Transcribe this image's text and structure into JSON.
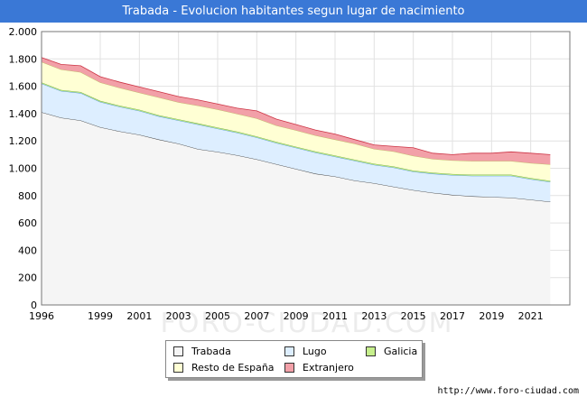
{
  "header": {
    "title": "Trabada - Evolucion habitantes segun lugar de nacimiento"
  },
  "footer": {
    "source": "http://www.foro-ciudad.com"
  },
  "watermark": {
    "text": "FORO-CIUDAD.COM"
  },
  "chart_data": {
    "type": "area",
    "stacked": true,
    "grid": true,
    "legend_position": "bottom",
    "ylim": [
      0,
      2000
    ],
    "yticks": [
      0,
      200,
      400,
      600,
      800,
      1000,
      1200,
      1400,
      1600,
      1800,
      2000
    ],
    "ytick_labels": [
      "0",
      "200",
      "400",
      "600",
      "800",
      "1.000",
      "1.200",
      "1.400",
      "1.600",
      "1.800",
      "2.000"
    ],
    "xlim": [
      1996,
      2023
    ],
    "xticks": [
      1996,
      1999,
      2001,
      2003,
      2005,
      2007,
      2009,
      2011,
      2013,
      2015,
      2017,
      2019,
      2021
    ],
    "x": [
      1996,
      1997,
      1998,
      1999,
      2000,
      2001,
      2002,
      2003,
      2004,
      2005,
      2006,
      2007,
      2008,
      2009,
      2010,
      2011,
      2012,
      2013,
      2014,
      2015,
      2016,
      2017,
      2018,
      2019,
      2020,
      2021,
      2022
    ],
    "series": [
      {
        "name": "Trabada",
        "color": "#f5f5f5",
        "line": "#333333",
        "values": [
          1410,
          1370,
          1350,
          1300,
          1270,
          1245,
          1210,
          1180,
          1140,
          1120,
          1095,
          1065,
          1030,
          995,
          960,
          940,
          910,
          890,
          865,
          840,
          820,
          805,
          795,
          790,
          785,
          770,
          755
        ]
      },
      {
        "name": "Lugo",
        "color": "#ddeeff",
        "line": "#4a90d9",
        "values": [
          210,
          195,
          200,
          185,
          180,
          175,
          170,
          170,
          180,
          170,
          165,
          160,
          155,
          155,
          155,
          145,
          145,
          135,
          140,
          135,
          140,
          145,
          150,
          155,
          160,
          150,
          145
        ]
      },
      {
        "name": "Galicia",
        "color": "#c6ef8c",
        "line": "#6da83a",
        "values": [
          8,
          8,
          8,
          8,
          8,
          8,
          8,
          8,
          8,
          8,
          8,
          8,
          8,
          8,
          8,
          8,
          8,
          8,
          8,
          8,
          8,
          8,
          8,
          8,
          8,
          8,
          8
        ]
      },
      {
        "name": "Resto de España",
        "color": "#ffffd4",
        "line": "#b8b860",
        "values": [
          150,
          150,
          145,
          135,
          130,
          125,
          130,
          125,
          130,
          132,
          130,
          132,
          120,
          120,
          117,
          117,
          117,
          108,
          110,
          108,
          100,
          100,
          100,
          100,
          100,
          110,
          120
        ]
      },
      {
        "name": "Extranjero",
        "color": "#f2a0a8",
        "line": "#cc3344",
        "values": [
          32,
          37,
          47,
          42,
          42,
          42,
          42,
          42,
          42,
          40,
          42,
          55,
          47,
          42,
          40,
          40,
          30,
          30,
          37,
          59,
          42,
          42,
          57,
          57,
          67,
          72,
          72
        ]
      }
    ]
  }
}
